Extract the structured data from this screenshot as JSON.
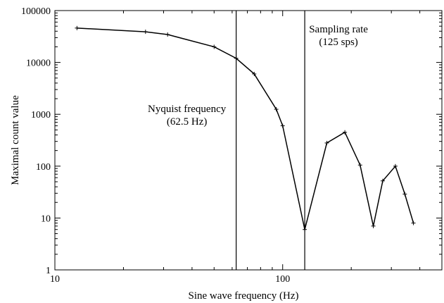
{
  "chart_data": {
    "type": "line",
    "xlabel": "Sine wave frequency (Hz)",
    "ylabel": "Maximal count value",
    "xscale": "log",
    "yscale": "log",
    "xlim": [
      10,
      500
    ],
    "ylim": [
      1,
      100000
    ],
    "x_ticks": [
      {
        "value": 10,
        "label": "10"
      },
      {
        "value": 100,
        "label": "100"
      }
    ],
    "y_ticks": [
      {
        "value": 1,
        "label": "1"
      },
      {
        "value": 10,
        "label": "10"
      },
      {
        "value": 100,
        "label": "100"
      },
      {
        "value": 1000,
        "label": "1000"
      },
      {
        "value": 10000,
        "label": "10000"
      },
      {
        "value": 100000,
        "label": "100000"
      }
    ],
    "grid": false,
    "series": [
      {
        "x": [
          12.5,
          25,
          31.25,
          50,
          62.5,
          75,
          93.75,
          100,
          125,
          156.25,
          187.5,
          218.75,
          250,
          275,
          312.5,
          343.75,
          375
        ],
        "y": [
          46000,
          39000,
          34500,
          20000,
          12000,
          6000,
          1250,
          600,
          6,
          280,
          450,
          105,
          7,
          52,
          100,
          29,
          8
        ]
      }
    ],
    "vlines": [
      {
        "x": 62.5,
        "label_lines": [
          "Nyquist frequency",
          "(62.5 Hz)"
        ]
      },
      {
        "x": 125,
        "label_lines": [
          "Sampling rate",
          "(125 sps)"
        ]
      }
    ]
  },
  "colors": {
    "line": "#000000",
    "axis": "#000000",
    "background": "#ffffff"
  }
}
